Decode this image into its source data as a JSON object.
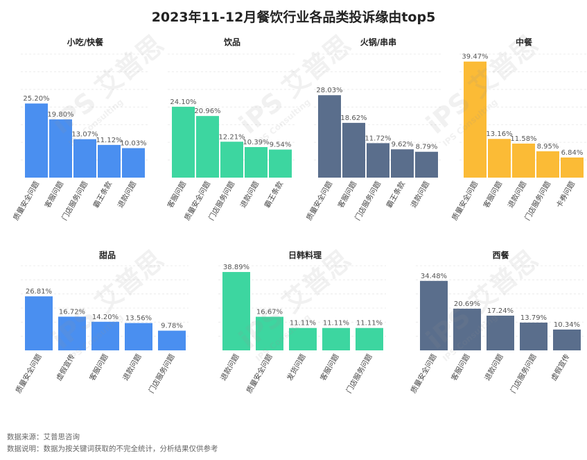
{
  "title": "2023年11-12月餐饮行业各品类投诉缘由top5",
  "footer": {
    "source": "数据来源：艾普思咨询",
    "note": "数据说明：数据为按关键词获取的不完全统计，分析结果仅供参考"
  },
  "watermark": {
    "brand": "iPS 艾普思",
    "sub": "IPS Consulting"
  },
  "chart_data": [
    {
      "type": "bar",
      "title": "小吃/快餐",
      "color": "#4a8ff0",
      "categories": [
        "质量安全问题",
        "客服问题",
        "门店服务问题",
        "霸王条款",
        "退款问题"
      ],
      "values": [
        25.2,
        19.8,
        13.07,
        11.12,
        10.03
      ],
      "labels": [
        "25.20%",
        "19.80%",
        "13.07%",
        "11.12%",
        "10.03%"
      ]
    },
    {
      "type": "bar",
      "title": "饮品",
      "color": "#3dd6a0",
      "categories": [
        "客服问题",
        "质量安全问题",
        "门店服务问题",
        "退款问题",
        "霸王条款"
      ],
      "values": [
        24.1,
        20.96,
        12.21,
        10.39,
        9.54
      ],
      "labels": [
        "24.10%",
        "20.96%",
        "12.21%",
        "10.39%",
        "9.54%"
      ]
    },
    {
      "type": "bar",
      "title": "火锅/串串",
      "color": "#5a6e8c",
      "categories": [
        "质量安全问题",
        "客服问题",
        "门店服务问题",
        "霸王条款",
        "退款问题"
      ],
      "values": [
        28.03,
        18.62,
        11.72,
        9.62,
        8.79
      ],
      "labels": [
        "28.03%",
        "18.62%",
        "11.72%",
        "9.62%",
        "8.79%"
      ]
    },
    {
      "type": "bar",
      "title": "中餐",
      "color": "#fbbb36",
      "categories": [
        "质量安全问题",
        "客服问题",
        "退款问题",
        "门店服务问题",
        "卡券问题"
      ],
      "values": [
        39.47,
        13.16,
        11.58,
        8.95,
        6.84
      ],
      "labels": [
        "39.47%",
        "13.16%",
        "11.58%",
        "8.95%",
        "6.84%"
      ]
    },
    {
      "type": "bar",
      "title": "甜品",
      "color": "#4a8ff0",
      "categories": [
        "质量安全问题",
        "虚假宣传",
        "客服问题",
        "退款问题",
        "门店服务问题"
      ],
      "values": [
        26.81,
        16.72,
        14.2,
        13.56,
        9.78
      ],
      "labels": [
        "26.81%",
        "16.72%",
        "14.20%",
        "13.56%",
        "9.78%"
      ]
    },
    {
      "type": "bar",
      "title": "日韩料理",
      "color": "#3dd6a0",
      "categories": [
        "退款问题",
        "质量安全问题",
        "发货问题",
        "客服问题",
        "门店服务问题"
      ],
      "values": [
        38.89,
        16.67,
        11.11,
        11.11,
        11.11
      ],
      "labels": [
        "38.89%",
        "16.67%",
        "11.11%",
        "11.11%",
        "11.11%"
      ]
    },
    {
      "type": "bar",
      "title": "西餐",
      "color": "#5a6e8c",
      "categories": [
        "质量安全问题",
        "客服问题",
        "退款问题",
        "门店服务问题",
        "虚假宣传"
      ],
      "values": [
        34.48,
        20.69,
        17.24,
        13.79,
        10.34
      ],
      "labels": [
        "34.48%",
        "20.69%",
        "17.24%",
        "13.79%",
        "10.34%"
      ]
    }
  ]
}
